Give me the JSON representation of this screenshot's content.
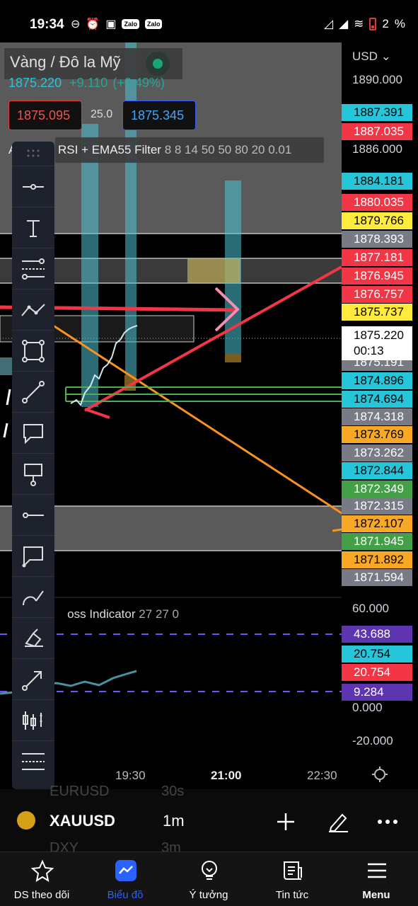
{
  "status_bar": {
    "time": "19:34",
    "battery": "2",
    "percent": "%"
  },
  "symbol_header": {
    "name": "Vàng / Đô la Mỹ",
    "last_price": "1875.220",
    "change": "+9.110",
    "change_pct": "(+0.49%)",
    "bid": "1875.095",
    "spread": "25.0",
    "ask": "1875.345",
    "indicator_name": "RSI + EMA55 Filter",
    "indicator_prefix": "A",
    "indicator_params": "8 8 14 50 50 80 20 0.01"
  },
  "price_axis": {
    "currency": "USD",
    "ticks": [
      "1890.000",
      "1886.000"
    ],
    "price_labels": [
      {
        "value": "1887.391",
        "color": "#26c6da"
      },
      {
        "value": "1887.035",
        "color": "#f23645"
      },
      {
        "value": "1884.181",
        "color": "#26c6da"
      },
      {
        "value": "1880.035",
        "color": "#f23645"
      },
      {
        "value": "1879.766",
        "color": "#ffeb3b"
      },
      {
        "value": "1878.393",
        "color": "#787b86"
      },
      {
        "value": "1877.181",
        "color": "#f23645"
      },
      {
        "value": "1876.945",
        "color": "#f23645"
      },
      {
        "value": "1876.757",
        "color": "#f23645"
      },
      {
        "value": "1875.737",
        "color": "#ffeb3b"
      },
      {
        "value": "1875.191",
        "color": "#787b86"
      },
      {
        "value": "1874.896",
        "color": "#26c6da"
      },
      {
        "value": "1874.694",
        "color": "#26c6da"
      },
      {
        "value": "1874.318",
        "color": "#787b86"
      },
      {
        "value": "1873.769",
        "color": "#f9a825"
      },
      {
        "value": "1873.262",
        "color": "#787b86"
      },
      {
        "value": "1872.844",
        "color": "#26c6da"
      },
      {
        "value": "1872.349",
        "color": "#43a047"
      },
      {
        "value": "1872.315",
        "color": "#787b86"
      },
      {
        "value": "1872.107",
        "color": "#f9a825"
      },
      {
        "value": "1871.945",
        "color": "#43a047"
      },
      {
        "value": "1871.892",
        "color": "#f9a825"
      },
      {
        "value": "1871.594",
        "color": "#787b86"
      }
    ],
    "current_price": "1875.220",
    "countdown": "00:13"
  },
  "oscillator": {
    "name": "oss Indicator",
    "prefix": "A",
    "params": "27 27 0",
    "ticks": [
      "60.000",
      "0.000",
      "-20.000"
    ],
    "labels": [
      {
        "value": "43.688",
        "color": "#5e35b1"
      },
      {
        "value": "20.754",
        "color": "#26c6da"
      },
      {
        "value": "20.754",
        "color": "#f23645"
      },
      {
        "value": "9.284",
        "color": "#5e35b1"
      }
    ]
  },
  "time_axis": {
    "labels": [
      "19:30",
      "21:00",
      "22:30"
    ]
  },
  "drawing_tools": [
    "grip-icon",
    "horizontal-ray-icon",
    "text-icon",
    "fib-retracement-icon",
    "trend-angle-icon",
    "rectangle-icon",
    "trend-line-icon",
    "callout-icon",
    "price-label-icon",
    "horizontal-line-icon",
    "balloon-icon",
    "brush-icon",
    "highlighter-icon",
    "arrow-icon",
    "long-position-icon",
    "pattern-icon"
  ],
  "bottom_bar": {
    "ghost_above_symbol": "EURUSD",
    "ghost_above_tf": "30s",
    "symbol": "XAUUSD",
    "timeframe": "1m",
    "ghost_below_symbol": "DXY",
    "ghost_below_tf": "3m"
  },
  "nav": [
    {
      "label": "DS theo dõi",
      "icon": "star-icon"
    },
    {
      "label": "Biểu đồ",
      "icon": "chart-icon",
      "active": true
    },
    {
      "label": "Ý tưởng",
      "icon": "lightbulb-icon"
    },
    {
      "label": "Tin tức",
      "icon": "news-icon"
    },
    {
      "label": "Menu",
      "icon": "menu-icon"
    }
  ]
}
